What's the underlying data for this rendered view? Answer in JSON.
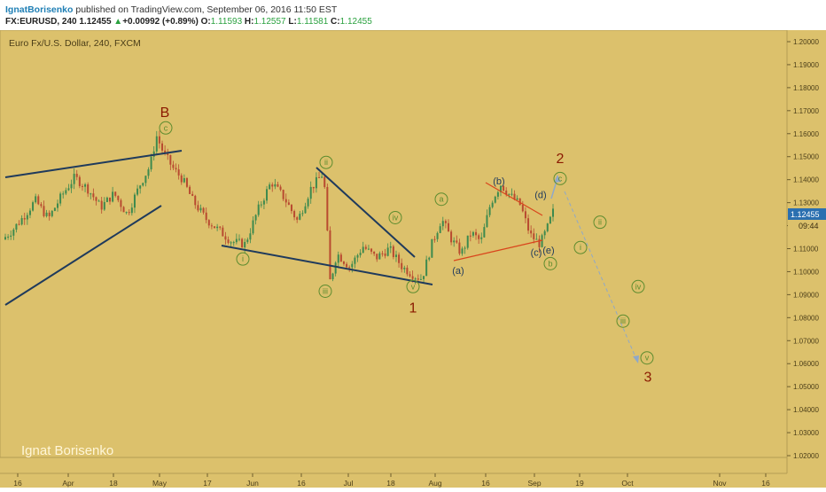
{
  "header": {
    "author": "IgnatBorisenko",
    "published_text": " published on TradingView.com, September 06, 2016 11:50 EST",
    "symbol": "FX:EURUSD, 240",
    "last": "1.12455",
    "change_arrow": "▲",
    "change": "+0.00992 (+0.89%)",
    "o_label": "O:",
    "o_value": "1.11593",
    "h_label": "H:",
    "h_value": "1.12557",
    "l_label": "L:",
    "l_value": "1.11581",
    "c_label": "C:",
    "c_value": "1.12455"
  },
  "chart_title": "Euro Fx/U.S. Dollar, 240, FXCM",
  "watermark": "Ignat Borisenko",
  "price_tag": "1.12455",
  "countdown": "09:44",
  "colors": {
    "background": "#dcc16c",
    "trendline": "#1f3a5c",
    "red_line": "#d9451c",
    "up_candle": "#3d8a4e",
    "down_candle": "#b84a30",
    "wave_label_green": "#5d8c2f",
    "major_label": "#8b1a00",
    "price_tag_bg": "#2a6fb0"
  },
  "chart_data": {
    "type": "candlestick",
    "y_ticks": [
      "1.02000",
      "1.03000",
      "1.04000",
      "1.05000",
      "1.06000",
      "1.07000",
      "1.08000",
      "1.09000",
      "1.10000",
      "1.11000",
      "1.12000",
      "1.13000",
      "1.14000",
      "1.15000",
      "1.16000",
      "1.17000",
      "1.18000",
      "1.19000",
      "1.20000"
    ],
    "x_ticks": [
      "16",
      "Apr",
      "18",
      "May",
      "17",
      "Jun",
      "16",
      "Jul",
      "18",
      "Aug",
      "16",
      "Sep",
      "19",
      "Oct",
      "Nov",
      "16"
    ],
    "ylim": [
      1.015,
      1.205
    ],
    "price_path": [
      [
        0,
        1.114
      ],
      [
        0.03,
        1.118
      ],
      [
        0.07,
        1.125
      ],
      [
        0.1,
        1.131
      ],
      [
        0.14,
        1.123
      ],
      [
        0.18,
        1.133
      ],
      [
        0.22,
        1.141
      ],
      [
        0.26,
        1.136
      ],
      [
        0.3,
        1.128
      ],
      [
        0.34,
        1.134
      ],
      [
        0.38,
        1.125
      ],
      [
        0.42,
        1.138
      ],
      [
        0.45,
        1.146
      ],
      [
        0.47,
        1.159
      ],
      [
        0.49,
        1.152
      ],
      [
        0.52,
        1.145
      ],
      [
        0.55,
        1.14
      ],
      [
        0.58,
        1.131
      ],
      [
        0.62,
        1.123
      ],
      [
        0.66,
        1.118
      ],
      [
        0.7,
        1.113
      ],
      [
        0.74,
        1.112
      ],
      [
        0.78,
        1.127
      ],
      [
        0.82,
        1.139
      ],
      [
        0.86,
        1.132
      ],
      [
        0.9,
        1.122
      ],
      [
        0.94,
        1.136
      ],
      [
        0.98,
        1.143
      ],
      [
        1.0,
        1.095
      ],
      [
        1.02,
        1.108
      ],
      [
        1.06,
        1.102
      ],
      [
        1.1,
        1.111
      ],
      [
        1.14,
        1.106
      ],
      [
        1.18,
        1.11
      ],
      [
        1.22,
        1.102
      ],
      [
        1.26,
        1.098
      ],
      [
        1.28,
        1.097
      ],
      [
        1.31,
        1.112
      ],
      [
        1.34,
        1.123
      ],
      [
        1.37,
        1.114
      ],
      [
        1.4,
        1.108
      ],
      [
        1.43,
        1.117
      ],
      [
        1.46,
        1.113
      ],
      [
        1.49,
        1.13
      ],
      [
        1.52,
        1.138
      ],
      [
        1.55,
        1.133
      ],
      [
        1.58,
        1.129
      ],
      [
        1.61,
        1.116
      ],
      [
        1.64,
        1.112
      ],
      [
        1.66,
        1.118
      ],
      [
        1.68,
        1.126
      ]
    ],
    "wave_labels": [
      {
        "text": "B",
        "x": "2016-05-03",
        "y": 1.1695,
        "style": "major"
      },
      {
        "text": "c",
        "x": "2016-05-03",
        "y": 1.1625,
        "style": "green"
      },
      {
        "text": "i",
        "x": "2016-06-03",
        "y": 1.1055,
        "style": "green"
      },
      {
        "text": "ii",
        "x": "2016-06-24",
        "y": 1.1475,
        "style": "green"
      },
      {
        "text": "iii",
        "x": "2016-06-24",
        "y": 1.0915,
        "style": "green"
      },
      {
        "text": "iv",
        "x": "2016-07-21",
        "y": 1.1235,
        "style": "green"
      },
      {
        "text": "v",
        "x": "2016-07-27",
        "y": 1.0935,
        "style": "green"
      },
      {
        "text": "1",
        "x": "2016-07-27",
        "y": 1.0845,
        "style": "major"
      },
      {
        "text": "a",
        "x": "2016-08-05",
        "y": 1.1315,
        "style": "green"
      },
      {
        "text": "(a)",
        "x": "2016-08-10",
        "y": 1.1005,
        "style": "navy"
      },
      {
        "text": "(b)",
        "x": "2016-08-18",
        "y": 1.1395,
        "style": "navy"
      },
      {
        "text": "(d)",
        "x": "2016-09-03",
        "y": 1.1335,
        "style": "navy"
      },
      {
        "text": "(c)",
        "x": "2016-09-02",
        "y": 1.1085,
        "style": "navy"
      },
      {
        "text": "(e)",
        "x": "2016-09-05",
        "y": 1.1095,
        "style": "navy"
      },
      {
        "text": "b",
        "x": "2016-09-05",
        "y": 1.1035,
        "style": "green"
      },
      {
        "text": "2",
        "x": "2016-09-09",
        "y": 1.1495,
        "style": "major"
      },
      {
        "text": "c",
        "x": "2016-09-09",
        "y": 1.1405,
        "style": "green"
      },
      {
        "text": "ii",
        "x": "2016-09-21",
        "y": 1.1215,
        "style": "green"
      },
      {
        "text": "i",
        "x": "2016-09-18",
        "y": 1.1105,
        "style": "green"
      },
      {
        "text": "iv",
        "x": "2016-09-28",
        "y": 1.0935,
        "style": "green"
      },
      {
        "text": "iii",
        "x": "2016-09-26",
        "y": 1.0785,
        "style": "green"
      },
      {
        "text": "v",
        "x": "2016-10-03",
        "y": 1.0625,
        "style": "green"
      },
      {
        "text": "3",
        "x": "2016-10-03",
        "y": 1.0545,
        "style": "major"
      }
    ]
  }
}
